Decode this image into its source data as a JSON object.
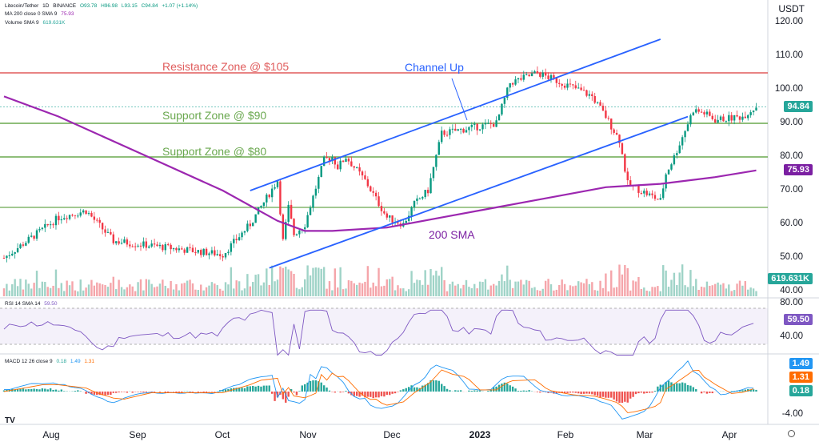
{
  "header": {
    "symbol": "Litecoin/Tether",
    "interval": "1D",
    "exchange": "BINANCE",
    "ohlc": {
      "o": "O93.78",
      "h": "H96.98",
      "l": "L93.15",
      "c": "C94.84",
      "chg": "+1.07 (+1.14%)"
    },
    "ma_label": "MA 200 close 0 SMA 9",
    "ma_value": "75.93",
    "volume_label": "Volume SMA 9",
    "volume_value": "619.631K",
    "quote_currency": "USDT"
  },
  "price_axis": {
    "ticks": [
      "120.00",
      "110.00",
      "100.00",
      "90.00",
      "80.00",
      "70.00",
      "60.00",
      "50.00",
      "40.00"
    ]
  },
  "time_axis": {
    "labels": [
      "Aug",
      "Sep",
      "Oct",
      "Nov",
      "Dec",
      "2023",
      "Feb",
      "Mar",
      "Apr"
    ]
  },
  "badges": {
    "price": "94.84",
    "ma200": "75.93",
    "volume": "619.631K",
    "rsi": "59.50",
    "macd": "1.49",
    "signal": "1.31",
    "hist": "0.18"
  },
  "rsi": {
    "label": "RSI 14 SMA 14",
    "value": "59.50",
    "ticks": [
      "80.00",
      "40.00"
    ]
  },
  "macd": {
    "label": "MACD 12 26 close 9",
    "v1": "0.18",
    "v2": "1.49",
    "v3": "1.31",
    "ticks": [
      "-4.00"
    ]
  },
  "annotations": {
    "resistance": "Resistance Zone @ $105",
    "support90": "Support Zone @ $90",
    "support80": "Support Zone @ $80",
    "channel": "Channel Up",
    "sma": "200 SMA"
  },
  "colors": {
    "up": "#089981",
    "down": "#f23645",
    "sma": "#9c27b0",
    "channel": "#2962ff",
    "resistance": "#e05c5c",
    "support": "#6aa84f",
    "price_badge": "#26a69a",
    "ma_badge": "#7b1fa2",
    "rsi_line": "#7e57c2",
    "macd_line": "#2196f3",
    "signal_line": "#ff6d00"
  },
  "chart_data": {
    "type": "line",
    "title": "Litecoin/Tether · 1D · BINANCE",
    "ylim": [
      37,
      125
    ],
    "price_path_days": [
      0,
      20,
      30,
      40,
      60,
      80,
      90,
      100,
      102,
      104,
      106,
      110,
      117,
      120,
      122,
      125,
      132,
      140,
      146,
      150,
      155,
      160,
      180,
      185,
      195,
      210,
      215,
      220,
      225,
      228,
      240,
      242,
      245,
      250,
      252,
      256,
      260,
      270,
      275
    ],
    "price_path_values": [
      50,
      62,
      64,
      55,
      53,
      51,
      60,
      73,
      55,
      65,
      57,
      60,
      79,
      80,
      77,
      80,
      73,
      62,
      60,
      66,
      70,
      87,
      90,
      102,
      105,
      100,
      98,
      92,
      85,
      72,
      67,
      75,
      80,
      90,
      94,
      93,
      91,
      92,
      95
    ],
    "sma200_days": [
      0,
      20,
      50,
      80,
      100,
      110,
      120,
      140,
      160,
      180,
      200,
      220,
      240,
      260,
      275
    ],
    "sma200_values": [
      98,
      92,
      81,
      70,
      61,
      58,
      58,
      59,
      62,
      65,
      68,
      71,
      72,
      74,
      76
    ],
    "levels": {
      "resistance": 105,
      "support_high": 90,
      "support_low": 80,
      "base": 65
    },
    "channel_upper": [
      [
        90,
        70
      ],
      [
        240,
        115
      ]
    ],
    "channel_lower": [
      [
        97,
        47
      ],
      [
        250,
        92
      ]
    ]
  }
}
